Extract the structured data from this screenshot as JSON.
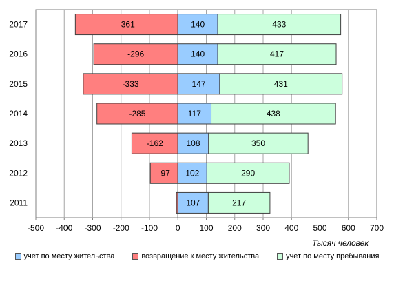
{
  "chart_data": {
    "type": "bar",
    "orientation": "horizontal",
    "stacked": true,
    "categories": [
      "2017",
      "2016",
      "2015",
      "2014",
      "2013",
      "2012",
      "2011"
    ],
    "series": [
      {
        "name": "возвращение к месту жительства",
        "color": "#ff7f7f",
        "values": [
          -361,
          -296,
          -333,
          -285,
          -162,
          -97,
          -5
        ],
        "labels": [
          "-361",
          "-296",
          "-333",
          "-285",
          "-162",
          "-97",
          ""
        ]
      },
      {
        "name": "учет по месту жительства",
        "color": "#99ccff",
        "values": [
          140,
          140,
          147,
          117,
          108,
          102,
          107
        ],
        "labels": [
          "140",
          "140",
          "147",
          "117",
          "108",
          "102",
          "107"
        ]
      },
      {
        "name": "учет по месту пребывания",
        "color": "#ccffdd",
        "values": [
          433,
          417,
          431,
          438,
          350,
          290,
          217
        ],
        "labels": [
          "433",
          "417",
          "431",
          "438",
          "350",
          "290",
          "217"
        ]
      }
    ],
    "xlim": [
      -500,
      700
    ],
    "xticks": [
      "-500",
      "-400",
      "-300",
      "-200",
      "-100",
      "0",
      "100",
      "200",
      "300",
      "400",
      "500",
      "600",
      "700"
    ],
    "xlabel": "Тысяч человек",
    "grid": "vertical",
    "legend_position": "bottom",
    "legend_order": [
      "учет по месту жительства",
      "возвращение к месту жительства",
      "учет по месту пребывания"
    ]
  }
}
